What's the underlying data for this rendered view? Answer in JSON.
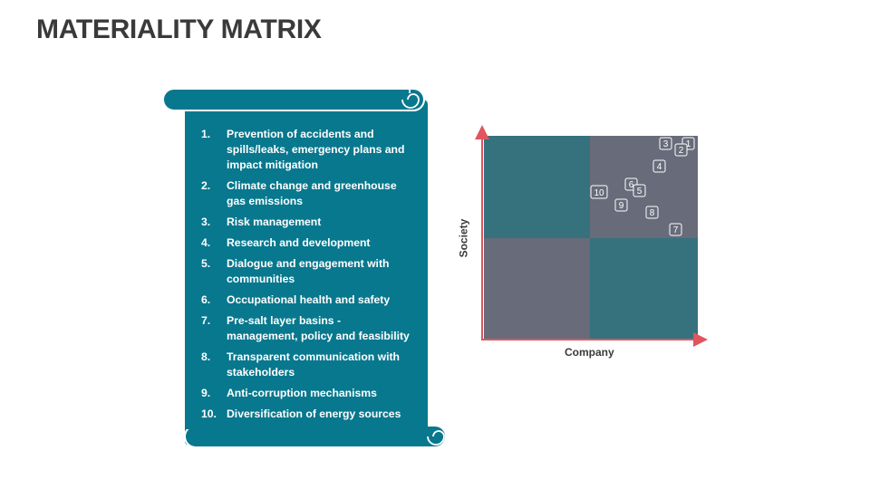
{
  "title": "MATERIALITY MATRIX",
  "colors": {
    "teal": "#08788E",
    "matrix_teal": "#36717E",
    "matrix_grey": "#676B7A",
    "axis": "#E0555E"
  },
  "list": [
    {
      "num": "1.",
      "text": "Prevention of accidents and spills/leaks, emergency plans and impact mitigation"
    },
    {
      "num": "2.",
      "text": "Climate change and greenhouse gas emissions"
    },
    {
      "num": "3.",
      "text": "Risk management"
    },
    {
      "num": "4.",
      "text": "Research and development"
    },
    {
      "num": "5.",
      "text": "Dialogue and engagement with communities"
    },
    {
      "num": "6.",
      "text": "Occupational health and safety"
    },
    {
      "num": "7.",
      "text": "Pre-salt layer basins - management, policy and feasibility"
    },
    {
      "num": "8.",
      "text": "Transparent communication with stakeholders"
    },
    {
      "num": "9.",
      "text": "Anti-corruption mechanisms"
    },
    {
      "num": "10.",
      "text": "Diversification of energy sources"
    }
  ],
  "matrix": {
    "xlabel": "Company",
    "ylabel": "Society",
    "markers": [
      "1",
      "2",
      "3",
      "4",
      "5",
      "6",
      "7",
      "8",
      "9",
      "10"
    ]
  }
}
